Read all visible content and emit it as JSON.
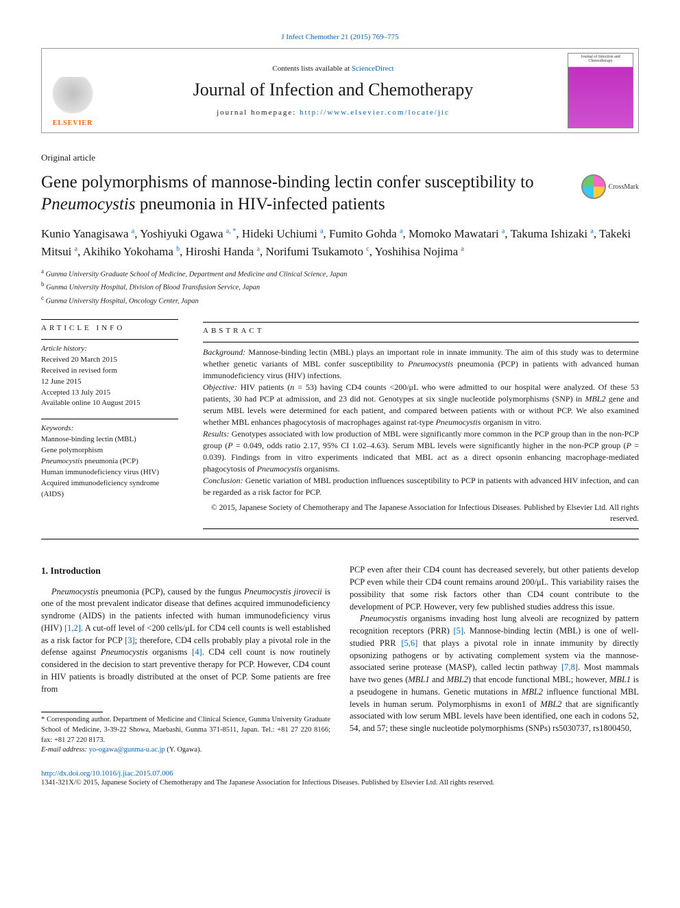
{
  "citation": {
    "text": "J Infect Chemother 21 (2015) 769–775",
    "href": "#"
  },
  "header": {
    "contents_prefix": "Contents lists available at ",
    "contents_link": "ScienceDirect",
    "journal_title": "Journal of Infection and Chemotherapy",
    "homepage_prefix": "journal homepage: ",
    "homepage_link": "http://www.elsevier.com/locate/jic",
    "elsevier_label": "ELSEVIER",
    "cover_top": "Journal of\nInfection and Chemotherapy"
  },
  "article_type": "Original article",
  "title": {
    "pre": "Gene polymorphisms of mannose-binding lectin confer susceptibility to ",
    "italic": "Pneumocystis",
    "post": " pneumonia in HIV-infected patients"
  },
  "crossmark_label": "CrossMark",
  "authors": {
    "list": [
      {
        "name": "Kunio Yanagisawa",
        "aff": "a"
      },
      {
        "name": "Yoshiyuki Ogawa",
        "aff": "a",
        "corr": true
      },
      {
        "name": "Hideki Uchiumi",
        "aff": "a"
      },
      {
        "name": "Fumito Gohda",
        "aff": "a"
      },
      {
        "name": "Momoko Mawatari",
        "aff": "a"
      },
      {
        "name": "Takuma Ishizaki",
        "aff": "a"
      },
      {
        "name": "Takeki Mitsui",
        "aff": "a"
      },
      {
        "name": "Akihiko Yokohama",
        "aff": "b"
      },
      {
        "name": "Hiroshi Handa",
        "aff": "a"
      },
      {
        "name": "Norifumi Tsukamoto",
        "aff": "c"
      },
      {
        "name": "Yoshihisa Nojima",
        "aff": "a"
      }
    ]
  },
  "affiliations": [
    {
      "sup": "a",
      "text": "Gunma University Graduate School of Medicine, Department and Medicine and Clinical Science, Japan"
    },
    {
      "sup": "b",
      "text": "Gunma University Hospital, Division of Blood Transfusion Service, Japan"
    },
    {
      "sup": "c",
      "text": "Gunma University Hospital, Oncology Center, Japan"
    }
  ],
  "info_heading": "ARTICLE INFO",
  "abs_heading": "ABSTRACT",
  "history": {
    "label": "Article history:",
    "lines": [
      "Received 20 March 2015",
      "Received in revised form",
      "12 June 2015",
      "Accepted 13 July 2015",
      "Available online 10 August 2015"
    ]
  },
  "keywords": {
    "label": "Keywords:",
    "lines": [
      "Mannose-binding lectin (MBL)",
      "Gene polymorphism",
      "<i>Pneumocystis</i> pneumonia (PCP)",
      "Human immunodeficiency virus (HIV)",
      "Acquired immunodeficiency syndrome (AIDS)"
    ]
  },
  "abstract": {
    "background": "Mannose-binding lectin (MBL) plays an important role in innate immunity. The aim of this study was to determine whether genetic variants of MBL confer susceptibility to <i>Pneumocystis</i> pneumonia (PCP) in patients with advanced human immunodeficiency virus (HIV) infections.",
    "objective": "HIV patients (<i>n</i> = 53) having CD4 counts <200/μL who were admitted to our hospital were analyzed. Of these 53 patients, 30 had PCP at admission, and 23 did not. Genotypes at six single nucleotide polymorphisms (SNP) in <i>MBL2</i> gene and serum MBL levels were determined for each patient, and compared between patients with or without PCP. We also examined whether MBL enhances phagocytosis of macrophages against rat-type <i>Pneumocystis</i> organism in vitro.",
    "results": "Genotypes associated with low production of MBL were significantly more common in the PCP group than in the non-PCP group (<i>P</i> = 0.049, odds ratio 2.17, 95% CI 1.02–4.63). Serum MBL levels were significantly higher in the non-PCP group (<i>P</i> = 0.039). Findings from in vitro experiments indicated that MBL act as a direct opsonin enhancing macrophage-mediated phagocytosis of <i>Pneumocystis</i> organisms.",
    "conclusion": "Genetic variation of MBL production influences susceptibility to PCP in patients with advanced HIV infection, and can be regarded as a risk factor for PCP."
  },
  "copyright_abstract": "© 2015, Japanese Society of Chemotherapy and The Japanese Association for Infectious Diseases. Published by Elsevier Ltd. All rights reserved.",
  "intro_heading": "1. Introduction",
  "intro_col1": "<i>Pneumocystis</i> pneumonia (PCP), caused by the fungus <i>Pneumocystis jirovecii</i> is one of the most prevalent indicator disease that defines acquired immunodeficiency syndrome (AIDS) in the patients infected with human immunodeficiency virus (HIV) <a class=\"ref\" href=\"#\">[1,2]</a>. A cut-off level of <200 cells/μL for CD4 cell counts is well established as a risk factor for PCP <a class=\"ref\" href=\"#\">[3]</a>; therefore, CD4 cells probably play a pivotal role in the defense against <i>Pneumocystis</i> organisms <a class=\"ref\" href=\"#\">[4]</a>. CD4 cell count is now routinely considered in the decision to start preventive therapy for PCP. However, CD4 count in HIV patients is broadly distributed at the onset of PCP. Some patients are free from",
  "intro_col2_p1": "PCP even after their CD4 count has decreased severely, but other patients develop PCP even while their CD4 count remains around 200/μL. This variability raises the possibility that some risk factors other than CD4 count contribute to the development of PCP. However, very few published studies address this issue.",
  "intro_col2_p2": "<i>Pneumocystis</i> organisms invading host lung alveoli are recognized by pattern recognition receptors (PRR) <a class=\"ref\" href=\"#\">[5]</a>. Mannose-binding lectin (MBL) is one of well-studied PRR <a class=\"ref\" href=\"#\">[5,6]</a> that plays a pivotal role in innate immunity by directly opsonizing pathogens or by activating complement system via the mannose-associated serine protease (MASP), called lectin pathway <a class=\"ref\" href=\"#\">[7,8]</a>. Most mammals have two genes (<i>MBL1</i> and <i>MBL2</i>) that encode functional MBL; however, <i>MBL1</i> is a pseudogene in humans. Genetic mutations in <i>MBL2</i> influence functional MBL levels in human serum. Polymorphisms in exon1 of <i>MBL2</i> that are significantly associated with low serum MBL levels have been identified, one each in codons 52, 54, and 57; these single nucleotide polymorphisms (SNPs) rs5030737, rs1800450,",
  "footnote": {
    "corr": "* Corresponding author. Department of Medicine and Clinical Science, Gunma University Graduate School of Medicine, 3-39-22 Showa, Maebashi, Gunma 371-8511, Japan. Tel.: +81 27 220 8166; fax: +81 27 220 8173.",
    "email_label": "E-mail address:",
    "email": "yo-ogawa@gunma-u.ac.jp",
    "email_suffix": " (Y. Ogawa)."
  },
  "doi": {
    "href": "#",
    "text": "http://dx.doi.org/10.1016/j.jiac.2015.07.006"
  },
  "copyright_footer": "1341-321X/© 2015, Japanese Society of Chemotherapy and The Japanese Association for Infectious Diseases. Published by Elsevier Ltd. All rights reserved.",
  "colors": {
    "link": "#0066cc",
    "elsevier_orange": "#ff6600",
    "cover_magenta": "#c030c0",
    "text": "#1a1a1a"
  },
  "fonts": {
    "body_family": "Georgia, 'Times New Roman', serif",
    "title_size_pt": 25,
    "journal_title_size_pt": 26,
    "author_size_pt": 17,
    "body_size_pt": 12.5,
    "abstract_size_pt": 12,
    "info_size_pt": 11
  }
}
